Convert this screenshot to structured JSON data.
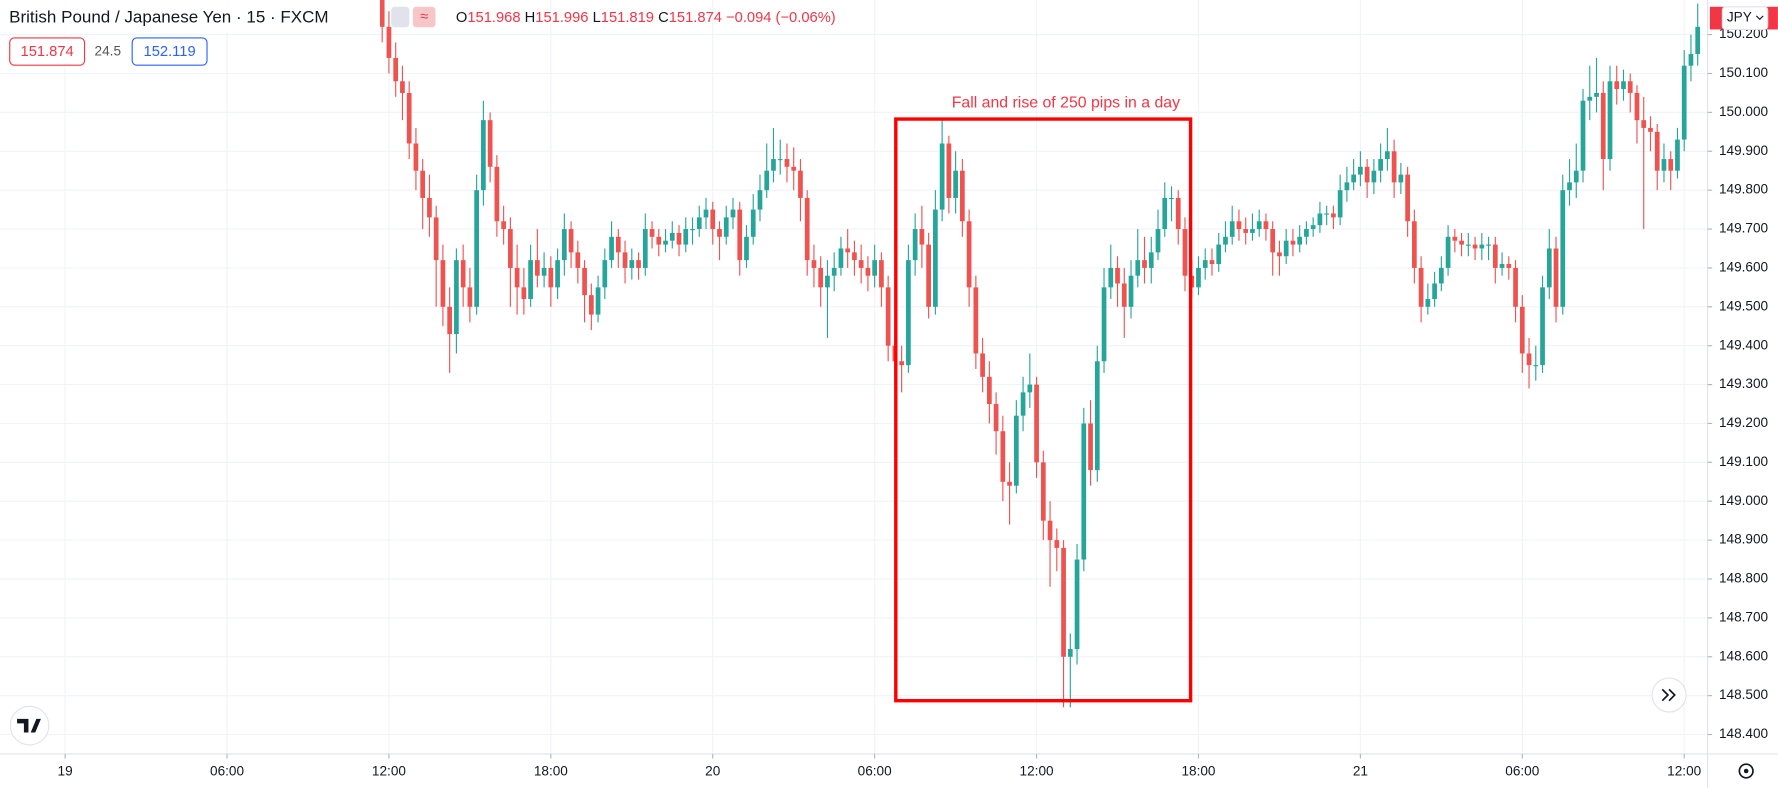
{
  "header": {
    "symbol": "British Pound / Japanese Yen · 15 · FXCM",
    "ohlc": [
      {
        "label": "O",
        "value": "151.968"
      },
      {
        "label": "H",
        "value": "151.996"
      },
      {
        "label": "L",
        "value": "151.819"
      },
      {
        "label": "C",
        "value": "151.874"
      }
    ],
    "change": "−0.094 (−0.06%)",
    "bid": "151.874",
    "spread": "24.5",
    "ask": "152.119",
    "currency": "JPY"
  },
  "chart_data": {
    "type": "candlestick",
    "annotation": "Fall and rise of 250 pips in a day",
    "up_color": "#26a69a",
    "down_color": "#ef5350",
    "grid": true,
    "xlim": [
      -56.64,
      196.47
    ],
    "ylim": [
      148.35,
      150.289
    ],
    "xticks": [
      {
        "value": -47,
        "label": "19"
      },
      {
        "value": -23,
        "label": "06:00"
      },
      {
        "value": 1,
        "label": "12:00"
      },
      {
        "value": 25,
        "label": "18:00"
      },
      {
        "value": 49,
        "label": "20"
      },
      {
        "value": 73,
        "label": "06:00"
      },
      {
        "value": 97,
        "label": "12:00"
      },
      {
        "value": 121,
        "label": "18:00"
      },
      {
        "value": 145,
        "label": "21"
      },
      {
        "value": 169,
        "label": "06:00"
      },
      {
        "value": 193,
        "label": "12:00"
      }
    ],
    "yticks": [
      {
        "value": 148.4,
        "label": "148.400"
      },
      {
        "value": 148.5,
        "label": "148.500"
      },
      {
        "value": 148.6,
        "label": "148.600"
      },
      {
        "value": 148.7,
        "label": "148.700"
      },
      {
        "value": 148.8,
        "label": "148.800"
      },
      {
        "value": 148.9,
        "label": "148.900"
      },
      {
        "value": 149.0,
        "label": "149.000"
      },
      {
        "value": 149.1,
        "label": "149.100"
      },
      {
        "value": 149.2,
        "label": "149.200"
      },
      {
        "value": 149.3,
        "label": "149.300"
      },
      {
        "value": 149.4,
        "label": "149.400"
      },
      {
        "value": 149.5,
        "label": "149.500"
      },
      {
        "value": 149.6,
        "label": "149.600"
      },
      {
        "value": 149.7,
        "label": "149.700"
      },
      {
        "value": 149.8,
        "label": "149.800"
      },
      {
        "value": 149.9,
        "label": "149.900"
      },
      {
        "value": 150.0,
        "label": "150.000"
      },
      {
        "value": 150.1,
        "label": "150.100"
      },
      {
        "value": 150.2,
        "label": "150.200"
      }
    ],
    "candles": [
      [
        150.3,
        150.34,
        150.18,
        150.22
      ],
      [
        150.22,
        150.26,
        150.1,
        150.14
      ],
      [
        150.14,
        150.18,
        150.04,
        150.08
      ],
      [
        150.08,
        150.12,
        149.98,
        150.05
      ],
      [
        150.05,
        150.08,
        149.88,
        149.92
      ],
      [
        149.92,
        149.96,
        149.8,
        149.85
      ],
      [
        149.85,
        149.88,
        149.7,
        149.78
      ],
      [
        149.78,
        149.84,
        149.68,
        149.73
      ],
      [
        149.73,
        149.76,
        149.5,
        149.62
      ],
      [
        149.62,
        149.66,
        149.45,
        149.5
      ],
      [
        149.5,
        149.55,
        149.33,
        149.43
      ],
      [
        149.43,
        149.65,
        149.38,
        149.62
      ],
      [
        149.62,
        149.66,
        149.5,
        149.55
      ],
      [
        149.55,
        149.6,
        149.46,
        149.5
      ],
      [
        149.5,
        149.84,
        149.48,
        149.8
      ],
      [
        149.8,
        150.03,
        149.76,
        149.98
      ],
      [
        149.98,
        150.0,
        149.82,
        149.86
      ],
      [
        149.86,
        149.89,
        149.68,
        149.72
      ],
      [
        149.72,
        149.76,
        149.66,
        149.7
      ],
      [
        149.7,
        149.73,
        149.5,
        149.6
      ],
      [
        149.6,
        149.66,
        149.48,
        149.55
      ],
      [
        149.55,
        149.6,
        149.48,
        149.52
      ],
      [
        149.52,
        149.66,
        149.5,
        149.62
      ],
      [
        149.62,
        149.7,
        149.55,
        149.58
      ],
      [
        149.58,
        149.64,
        149.55,
        149.6
      ],
      [
        149.6,
        149.63,
        149.5,
        149.55
      ],
      [
        149.55,
        149.65,
        149.52,
        149.62
      ],
      [
        149.62,
        149.74,
        149.58,
        149.7
      ],
      [
        149.7,
        149.72,
        149.6,
        149.64
      ],
      [
        149.64,
        149.67,
        149.56,
        149.6
      ],
      [
        149.6,
        149.62,
        149.46,
        149.53
      ],
      [
        149.53,
        149.56,
        149.44,
        149.48
      ],
      [
        149.48,
        149.58,
        149.46,
        149.55
      ],
      [
        149.55,
        149.65,
        149.52,
        149.62
      ],
      [
        149.62,
        149.72,
        149.6,
        149.68
      ],
      [
        149.68,
        149.7,
        149.6,
        149.64
      ],
      [
        149.64,
        149.67,
        149.56,
        149.6
      ],
      [
        149.6,
        149.65,
        149.57,
        149.62
      ],
      [
        149.62,
        149.64,
        149.57,
        149.6
      ],
      [
        149.6,
        149.74,
        149.58,
        149.7
      ],
      [
        149.7,
        149.72,
        149.65,
        149.68
      ],
      [
        149.68,
        149.7,
        149.63,
        149.66
      ],
      [
        149.66,
        149.7,
        149.64,
        149.67
      ],
      [
        149.67,
        149.72,
        149.65,
        149.69
      ],
      [
        149.69,
        149.71,
        149.63,
        149.66
      ],
      [
        149.66,
        149.73,
        149.64,
        149.7
      ],
      [
        149.7,
        149.73,
        149.66,
        149.7
      ],
      [
        149.7,
        149.76,
        149.68,
        149.73
      ],
      [
        149.73,
        149.78,
        149.7,
        149.75
      ],
      [
        149.75,
        149.77,
        149.66,
        149.7
      ],
      [
        149.7,
        149.72,
        149.62,
        149.68
      ],
      [
        149.68,
        149.76,
        149.66,
        149.73
      ],
      [
        149.73,
        149.78,
        149.7,
        149.75
      ],
      [
        149.75,
        149.77,
        149.58,
        149.62
      ],
      [
        149.62,
        149.71,
        149.6,
        149.68
      ],
      [
        149.68,
        149.79,
        149.66,
        149.75
      ],
      [
        149.75,
        149.84,
        149.72,
        149.8
      ],
      [
        149.8,
        149.92,
        149.78,
        149.85
      ],
      [
        149.85,
        149.96,
        149.82,
        149.88
      ],
      [
        149.88,
        149.93,
        149.84,
        149.88
      ],
      [
        149.88,
        149.92,
        149.82,
        149.86
      ],
      [
        149.86,
        149.91,
        149.8,
        149.85
      ],
      [
        149.85,
        149.88,
        149.72,
        149.78
      ],
      [
        149.78,
        149.8,
        149.58,
        149.62
      ],
      [
        149.62,
        149.66,
        149.55,
        149.6
      ],
      [
        149.6,
        149.63,
        149.5,
        149.55
      ],
      [
        149.55,
        149.62,
        149.42,
        149.58
      ],
      [
        149.58,
        149.64,
        149.54,
        149.6
      ],
      [
        149.6,
        149.68,
        149.58,
        149.65
      ],
      [
        149.65,
        149.7,
        149.6,
        149.64
      ],
      [
        149.64,
        149.67,
        149.58,
        149.62
      ],
      [
        149.62,
        149.66,
        149.56,
        149.6
      ],
      [
        149.6,
        149.63,
        149.54,
        149.58
      ],
      [
        149.58,
        149.66,
        149.55,
        149.62
      ],
      [
        149.62,
        149.64,
        149.5,
        149.55
      ],
      [
        149.55,
        149.58,
        149.36,
        149.4
      ],
      [
        149.4,
        149.45,
        149.32,
        149.36
      ],
      [
        149.36,
        149.4,
        149.28,
        149.35
      ],
      [
        149.35,
        149.66,
        149.33,
        149.62
      ],
      [
        149.62,
        149.74,
        149.58,
        149.7
      ],
      [
        149.7,
        149.76,
        149.6,
        149.66
      ],
      [
        149.66,
        149.69,
        149.47,
        149.5
      ],
      [
        149.5,
        149.8,
        149.48,
        149.75
      ],
      [
        149.75,
        149.98,
        149.72,
        149.92
      ],
      [
        149.92,
        149.94,
        149.74,
        149.78
      ],
      [
        149.78,
        149.9,
        149.74,
        149.85
      ],
      [
        149.85,
        149.88,
        149.68,
        149.72
      ],
      [
        149.72,
        149.75,
        149.5,
        149.55
      ],
      [
        149.55,
        149.58,
        149.34,
        149.38
      ],
      [
        149.38,
        149.42,
        149.28,
        149.32
      ],
      [
        149.32,
        149.36,
        149.2,
        149.25
      ],
      [
        149.25,
        149.28,
        149.12,
        149.18
      ],
      [
        149.18,
        149.22,
        149.0,
        149.05
      ],
      [
        149.05,
        149.1,
        148.94,
        149.04
      ],
      [
        149.04,
        149.26,
        149.02,
        149.22
      ],
      [
        149.22,
        149.32,
        149.18,
        149.28
      ],
      [
        149.28,
        149.38,
        149.24,
        149.3
      ],
      [
        149.3,
        149.32,
        149.06,
        149.1
      ],
      [
        149.1,
        149.13,
        148.9,
        148.95
      ],
      [
        148.95,
        149.0,
        148.78,
        148.9
      ],
      [
        148.9,
        148.93,
        148.82,
        148.88
      ],
      [
        148.88,
        148.9,
        148.47,
        148.6
      ],
      [
        148.6,
        148.66,
        148.47,
        148.62
      ],
      [
        148.62,
        148.89,
        148.58,
        148.85
      ],
      [
        148.85,
        149.24,
        148.82,
        149.2
      ],
      [
        149.2,
        149.26,
        149.04,
        149.08
      ],
      [
        149.08,
        149.4,
        149.05,
        149.36
      ],
      [
        149.36,
        149.6,
        149.33,
        149.55
      ],
      [
        149.55,
        149.66,
        149.52,
        149.6
      ],
      [
        149.6,
        149.63,
        149.5,
        149.56
      ],
      [
        149.56,
        149.6,
        149.42,
        149.5
      ],
      [
        149.5,
        149.62,
        149.47,
        149.58
      ],
      [
        149.58,
        149.7,
        149.55,
        149.62
      ],
      [
        149.62,
        149.68,
        149.56,
        149.6
      ],
      [
        149.6,
        149.68,
        149.56,
        149.64
      ],
      [
        149.64,
        149.75,
        149.62,
        149.7
      ],
      [
        149.7,
        149.82,
        149.68,
        149.78
      ],
      [
        149.78,
        149.81,
        149.72,
        149.78
      ],
      [
        149.78,
        149.8,
        149.66,
        149.7
      ],
      [
        149.7,
        149.73,
        149.54,
        149.58
      ],
      [
        149.58,
        149.62,
        149.52,
        149.55
      ],
      [
        149.55,
        149.63,
        149.53,
        149.6
      ],
      [
        149.6,
        149.65,
        149.57,
        149.62
      ],
      [
        149.62,
        149.65,
        149.58,
        149.61
      ],
      [
        149.61,
        149.69,
        149.59,
        149.66
      ],
      [
        149.66,
        149.72,
        149.64,
        149.68
      ],
      [
        149.68,
        149.76,
        149.66,
        149.72
      ],
      [
        149.72,
        149.75,
        149.67,
        149.7
      ],
      [
        149.7,
        149.73,
        149.66,
        149.69
      ],
      [
        149.69,
        149.74,
        149.67,
        149.7
      ],
      [
        149.7,
        149.75,
        149.68,
        149.72
      ],
      [
        149.72,
        149.74,
        149.67,
        149.7
      ],
      [
        149.7,
        149.72,
        149.58,
        149.64
      ],
      [
        149.64,
        149.67,
        149.58,
        149.63
      ],
      [
        149.63,
        149.7,
        149.61,
        149.67
      ],
      [
        149.67,
        149.7,
        149.63,
        149.66
      ],
      [
        149.66,
        149.71,
        149.64,
        149.68
      ],
      [
        149.68,
        149.72,
        149.66,
        149.7
      ],
      [
        149.7,
        149.73,
        149.68,
        149.71
      ],
      [
        149.71,
        149.77,
        149.69,
        149.74
      ],
      [
        149.74,
        149.76,
        149.71,
        149.74
      ],
      [
        149.74,
        149.76,
        149.7,
        149.73
      ],
      [
        149.73,
        149.84,
        149.71,
        149.8
      ],
      [
        149.8,
        149.86,
        149.77,
        149.82
      ],
      [
        149.82,
        149.88,
        149.8,
        149.84
      ],
      [
        149.84,
        149.9,
        149.81,
        149.86
      ],
      [
        149.86,
        149.88,
        149.78,
        149.82
      ],
      [
        149.82,
        149.88,
        149.79,
        149.85
      ],
      [
        149.85,
        149.92,
        149.82,
        149.88
      ],
      [
        149.88,
        149.96,
        149.85,
        149.9
      ],
      [
        149.9,
        149.93,
        149.78,
        149.82
      ],
      [
        149.82,
        149.87,
        149.79,
        149.84
      ],
      [
        149.84,
        149.86,
        149.68,
        149.72
      ],
      [
        149.72,
        149.75,
        149.56,
        149.6
      ],
      [
        149.6,
        149.63,
        149.46,
        149.5
      ],
      [
        149.5,
        149.56,
        149.48,
        149.52
      ],
      [
        149.52,
        149.59,
        149.5,
        149.56
      ],
      [
        149.56,
        149.63,
        149.54,
        149.6
      ],
      [
        149.6,
        149.71,
        149.58,
        149.68
      ],
      [
        149.68,
        149.7,
        149.64,
        149.67
      ],
      [
        149.67,
        149.69,
        149.63,
        149.66
      ],
      [
        149.66,
        149.69,
        149.63,
        149.66
      ],
      [
        149.66,
        149.68,
        149.62,
        149.65
      ],
      [
        149.65,
        149.69,
        149.62,
        149.66
      ],
      [
        149.66,
        149.68,
        149.62,
        149.66
      ],
      [
        149.66,
        149.68,
        149.56,
        149.6
      ],
      [
        149.6,
        149.64,
        149.58,
        149.61
      ],
      [
        149.61,
        149.63,
        149.57,
        149.6
      ],
      [
        149.6,
        149.62,
        149.46,
        149.5
      ],
      [
        149.5,
        149.53,
        149.33,
        149.38
      ],
      [
        149.38,
        149.42,
        149.29,
        149.35
      ],
      [
        149.35,
        149.4,
        149.31,
        149.35
      ],
      [
        149.35,
        149.58,
        149.33,
        149.55
      ],
      [
        149.55,
        149.7,
        149.52,
        149.65
      ],
      [
        149.65,
        149.68,
        149.46,
        149.5
      ],
      [
        149.5,
        149.84,
        149.48,
        149.8
      ],
      [
        149.8,
        149.88,
        149.76,
        149.82
      ],
      [
        149.82,
        149.92,
        149.78,
        149.85
      ],
      [
        149.85,
        150.06,
        149.82,
        150.03
      ],
      [
        150.03,
        150.12,
        149.98,
        150.04
      ],
      [
        150.04,
        150.14,
        150.0,
        150.05
      ],
      [
        150.05,
        150.08,
        149.8,
        149.88
      ],
      [
        149.88,
        150.12,
        149.85,
        150.08
      ],
      [
        150.08,
        150.12,
        150.02,
        150.06
      ],
      [
        150.06,
        150.11,
        150.03,
        150.08
      ],
      [
        150.08,
        150.1,
        150.0,
        150.05
      ],
      [
        150.05,
        150.07,
        149.92,
        149.98
      ],
      [
        149.98,
        150.04,
        149.7,
        149.96
      ],
      [
        149.96,
        149.99,
        149.9,
        149.95
      ],
      [
        149.95,
        149.97,
        149.8,
        149.85
      ],
      [
        149.85,
        149.92,
        149.82,
        149.88
      ],
      [
        149.88,
        149.9,
        149.8,
        149.85
      ],
      [
        149.85,
        149.96,
        149.83,
        149.93
      ],
      [
        149.93,
        150.16,
        149.9,
        150.12
      ],
      [
        150.12,
        150.2,
        150.08,
        150.15
      ],
      [
        150.15,
        150.28,
        150.12,
        150.22
      ]
    ]
  }
}
